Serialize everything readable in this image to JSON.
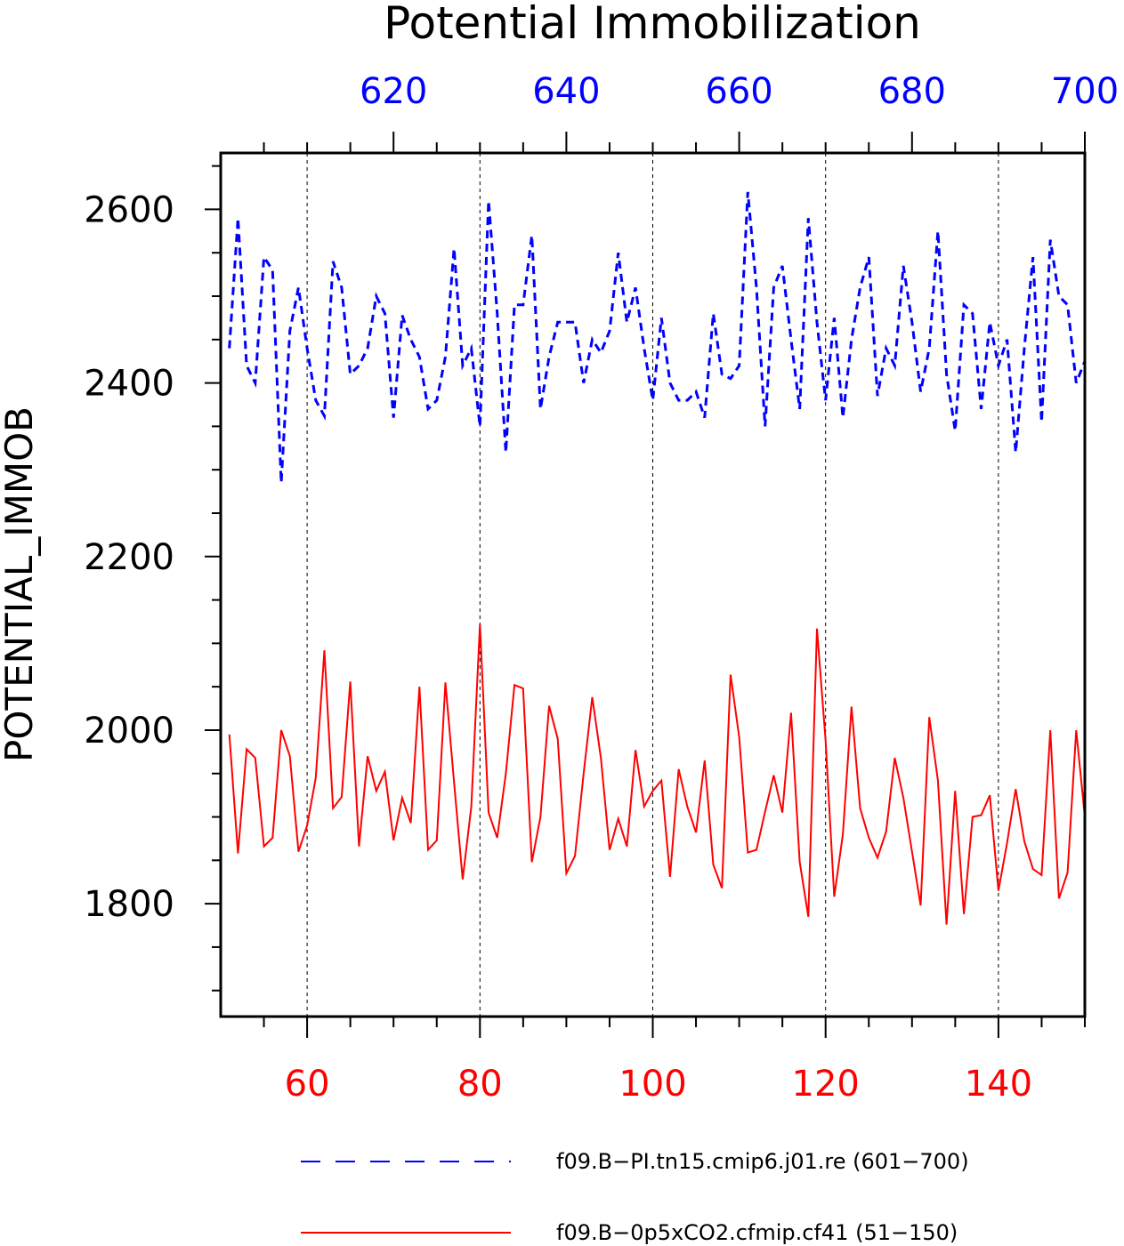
{
  "chart_data": {
    "type": "line",
    "title": "Potential Immobilization",
    "ylabel": "POTENTIAL_IMMOB",
    "ylim": [
      1670,
      2665
    ],
    "grid": "vertical-dashed",
    "legend_position": "bottom",
    "y_ticks": [
      1800,
      2000,
      2200,
      2400,
      2600
    ],
    "top_axis": {
      "color": "#0000ff",
      "range": [
        600,
        700
      ],
      "ticks": [
        620,
        640,
        660,
        680,
        700
      ]
    },
    "bottom_axis": {
      "color": "#ff0000",
      "range": [
        50,
        150
      ],
      "ticks": [
        60,
        80,
        100,
        120,
        140
      ]
    },
    "series": [
      {
        "name": "f09.B−PI.tn15.cmip6.j01.re (601−700)",
        "axis": "top",
        "color": "#0000ff",
        "style": "dashed",
        "x_start": 601,
        "values": [
          2440,
          2590,
          2420,
          2400,
          2545,
          2530,
          2285,
          2460,
          2510,
          2440,
          2380,
          2362,
          2540,
          2510,
          2410,
          2420,
          2440,
          2500,
          2480,
          2360,
          2478,
          2450,
          2430,
          2370,
          2380,
          2430,
          2555,
          2420,
          2440,
          2350,
          2610,
          2480,
          2320,
          2490,
          2490,
          2570,
          2370,
          2430,
          2470,
          2470,
          2470,
          2400,
          2450,
          2435,
          2460,
          2550,
          2470,
          2510,
          2440,
          2380,
          2475,
          2400,
          2380,
          2380,
          2390,
          2360,
          2480,
          2410,
          2405,
          2420,
          2620,
          2510,
          2350,
          2510,
          2535,
          2450,
          2370,
          2590,
          2470,
          2380,
          2475,
          2360,
          2450,
          2510,
          2545,
          2385,
          2440,
          2420,
          2535,
          2470,
          2390,
          2440,
          2575,
          2410,
          2345,
          2490,
          2480,
          2370,
          2470,
          2420,
          2450,
          2320,
          2440,
          2545,
          2355,
          2565,
          2500,
          2490,
          2400,
          2425
        ]
      },
      {
        "name": "f09.B−0p5xCO2.cfmip.cf41 (51−150)",
        "axis": "bottom",
        "color": "#ff0000",
        "style": "solid",
        "x_start": 51,
        "values": [
          1995,
          1858,
          1978,
          1968,
          1866,
          1876,
          2000,
          1970,
          1860,
          1890,
          1945,
          2092,
          1910,
          1923,
          2056,
          1866,
          1970,
          1930,
          1952,
          1873,
          1922,
          1893,
          2050,
          1862,
          1873,
          2055,
          1940,
          1828,
          1912,
          2122,
          1905,
          1876,
          1950,
          2052,
          2048,
          1848,
          1900,
          2028,
          1990,
          1835,
          1855,
          1950,
          2038,
          1968,
          1862,
          1898,
          1866,
          1977,
          1912,
          1930,
          1942,
          1831,
          1955,
          1912,
          1882,
          1965,
          1845,
          1818,
          2064,
          1992,
          1859,
          1862,
          1906,
          1948,
          1905,
          2020,
          1848,
          1785,
          2117,
          1988,
          1808,
          1880,
          2027,
          1910,
          1876,
          1853,
          1883,
          1968,
          1922,
          1860,
          1798,
          2015,
          1942,
          1776,
          1930,
          1788,
          1900,
          1902,
          1925,
          1815,
          1870,
          1932,
          1872,
          1840,
          1833,
          2000,
          1806,
          1836,
          2000,
          1900
        ]
      }
    ]
  }
}
